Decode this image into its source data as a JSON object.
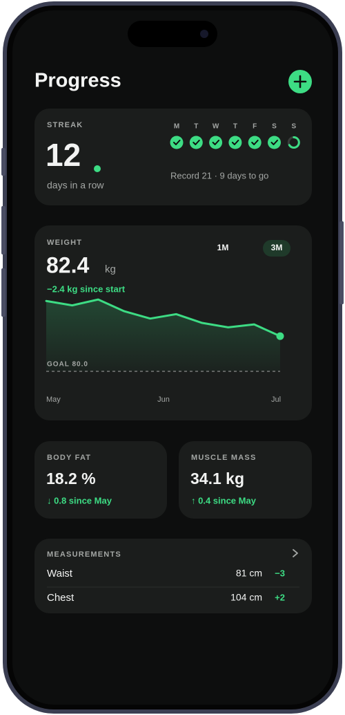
{
  "header": {
    "title": "Progress"
  },
  "streak": {
    "label": "STREAK",
    "count": "12",
    "caption": "days in a row",
    "days": [
      {
        "letter": "M",
        "done": true
      },
      {
        "letter": "T",
        "done": true
      },
      {
        "letter": "W",
        "done": true
      },
      {
        "letter": "T",
        "done": true
      },
      {
        "letter": "F",
        "done": true
      },
      {
        "letter": "S",
        "done": true
      },
      {
        "letter": "S",
        "done": false
      }
    ],
    "record": "Record 21 · 9 days to go"
  },
  "weight": {
    "label": "WEIGHT",
    "value": "82.4",
    "unit": "kg",
    "change": "−2.4 kg since start",
    "ranges": [
      {
        "label": "1M",
        "active": false
      },
      {
        "label": "3M",
        "active": true
      }
    ],
    "chart": {
      "type": "line",
      "values": [
        84.8,
        84.5,
        84.9,
        84.1,
        83.6,
        83.9,
        83.3,
        83.0,
        83.2,
        82.4
      ],
      "ylim": [
        80,
        85
      ],
      "color": "#3ddc84",
      "goal": {
        "value": 80,
        "label": "GOAL 80.0"
      },
      "x_labels": [
        "May",
        "Jun",
        "Jul"
      ]
    }
  },
  "body_fat": {
    "label": "BODY FAT",
    "value": "18.2 %",
    "change": "↓ 0.8 since May"
  },
  "muscle_mass": {
    "label": "MUSCLE MASS",
    "value": "34.1 kg",
    "change": "↑ 0.4 since May"
  },
  "measurements": {
    "label": "MEASUREMENTS",
    "rows": [
      {
        "name": "Waist",
        "value": "81 cm",
        "delta": "−3"
      },
      {
        "name": "Chest",
        "value": "104 cm",
        "delta": "+2"
      }
    ]
  }
}
